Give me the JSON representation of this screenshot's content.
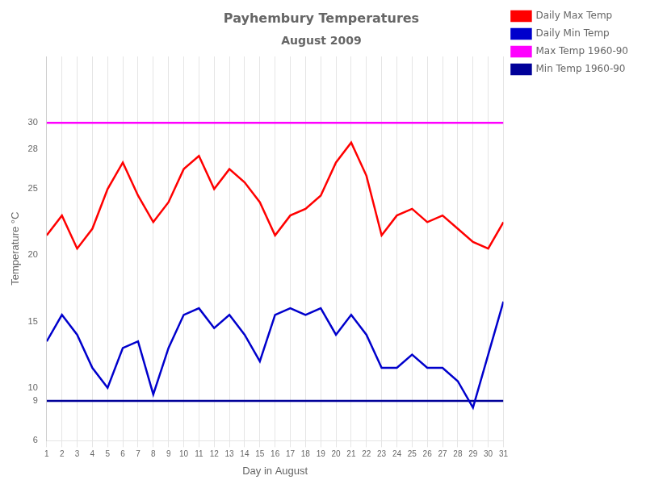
{
  "chart_data": {
    "type": "line",
    "title": "Payhembury Temperatures",
    "subtitle": "August 2009",
    "xlabel": "Day in August",
    "ylabel": "Temperature °C",
    "x": [
      1,
      2,
      3,
      4,
      5,
      6,
      7,
      8,
      9,
      10,
      11,
      12,
      13,
      14,
      15,
      16,
      17,
      18,
      19,
      20,
      21,
      22,
      23,
      24,
      25,
      26,
      27,
      28,
      29,
      30,
      31
    ],
    "series": [
      {
        "name": "Daily Max Temp",
        "color": "#ff0000",
        "values": [
          21.5,
          23.0,
          20.5,
          22.0,
          25.0,
          27.0,
          24.5,
          22.5,
          24.0,
          26.5,
          27.5,
          25.0,
          26.5,
          25.5,
          24.0,
          21.5,
          23.0,
          23.5,
          24.5,
          27.0,
          28.5,
          26.0,
          21.5,
          23.0,
          23.5,
          22.5,
          23.0,
          22.0,
          21.0,
          20.5,
          22.5
        ]
      },
      {
        "name": "Daily Min Temp",
        "color": "#0000cc",
        "values": [
          13.5,
          15.5,
          14.0,
          11.5,
          10.0,
          13.0,
          13.5,
          9.5,
          13.0,
          15.5,
          16.0,
          14.5,
          15.5,
          14.0,
          12.0,
          15.5,
          16.0,
          15.5,
          16.0,
          14.0,
          15.5,
          14.0,
          11.5,
          11.5,
          12.5,
          11.5,
          11.5,
          10.5,
          8.5,
          12.5,
          16.5
        ]
      },
      {
        "name": "Max Temp 1960-90",
        "color": "#ff00ff",
        "type": "hline",
        "value": 30.0
      },
      {
        "name": "Min Temp 1960-90",
        "color": "#000099",
        "type": "hline",
        "value": 9.0
      }
    ],
    "xlim": [
      1,
      31
    ],
    "xticks": [
      1,
      2,
      3,
      4,
      5,
      6,
      7,
      8,
      9,
      10,
      11,
      12,
      13,
      14,
      15,
      16,
      17,
      18,
      19,
      20,
      21,
      22,
      23,
      24,
      25,
      26,
      27,
      28,
      29,
      30,
      31
    ],
    "ylim": [
      6,
      35
    ],
    "yticks": [
      6,
      9,
      10,
      15,
      20,
      25,
      28,
      30
    ],
    "grid": "x",
    "legend": "right"
  }
}
